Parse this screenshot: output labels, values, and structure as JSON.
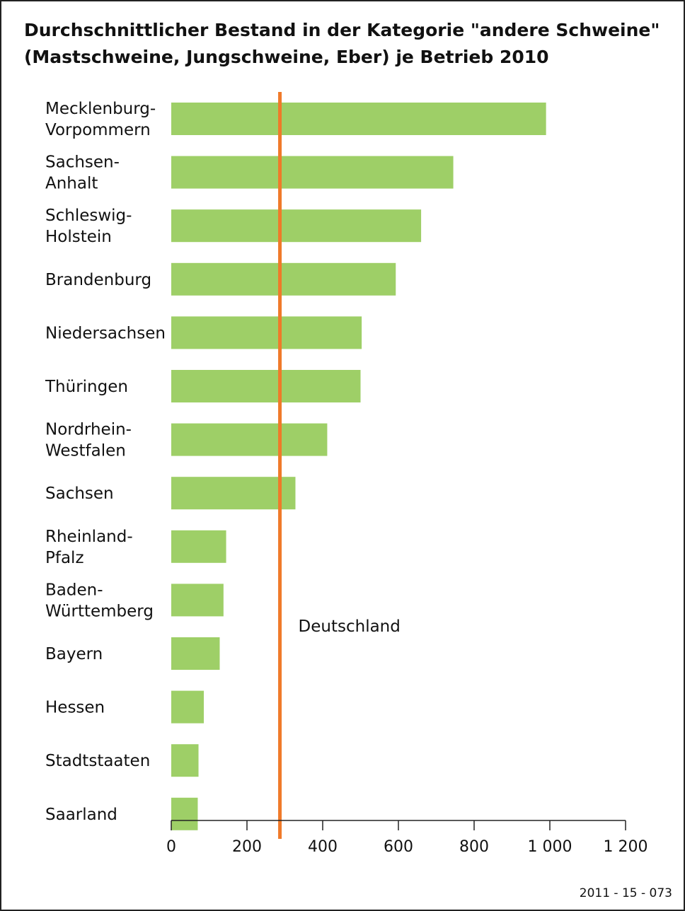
{
  "title_lines": [
    "Durchschnittlicher Bestand in der Kategorie \"andere Schweine\"",
    "(Mastschweine, Jungschweine, Eber) je Betrieb 2010"
  ],
  "colors": {
    "bar": "#9ecf67",
    "reference": "#f07a2a",
    "axis": "#222222"
  },
  "chart_data": {
    "type": "bar",
    "orientation": "horizontal",
    "title": "Durchschnittlicher Bestand in der Kategorie \"andere Schweine\" (Mastschweine, Jungschweine, Eber) je Betrieb 2010",
    "categories": [
      [
        "Mecklenburg-",
        "Vorpommern"
      ],
      [
        "Sachsen-",
        "Anhalt"
      ],
      [
        "Schleswig-",
        "Holstein"
      ],
      [
        "Brandenburg"
      ],
      [
        "Niedersachsen"
      ],
      [
        "Thüringen"
      ],
      [
        "Nordrhein-",
        "Westfalen"
      ],
      [
        "Sachsen"
      ],
      [
        "Rheinland-",
        "Pfalz"
      ],
      [
        "Baden-",
        "Württemberg"
      ],
      [
        "Bayern"
      ],
      [
        "Hessen"
      ],
      [
        "Stadtstaaten"
      ],
      [
        "Saarland"
      ]
    ],
    "values": [
      990,
      745,
      660,
      593,
      503,
      500,
      412,
      328,
      145,
      138,
      128,
      86,
      72,
      70
    ],
    "reference_line": {
      "label": "Deutschland",
      "value": 287
    },
    "xlim": [
      0,
      1200
    ],
    "x_ticks": [
      0,
      200,
      400,
      600,
      800,
      1000,
      1200
    ],
    "x_tick_labels": [
      "0",
      "200",
      "400",
      "600",
      "800",
      "1 000",
      "1 200"
    ],
    "grid": false,
    "legend": "none"
  },
  "footer": {
    "code": "2011 - 15 - 073"
  }
}
